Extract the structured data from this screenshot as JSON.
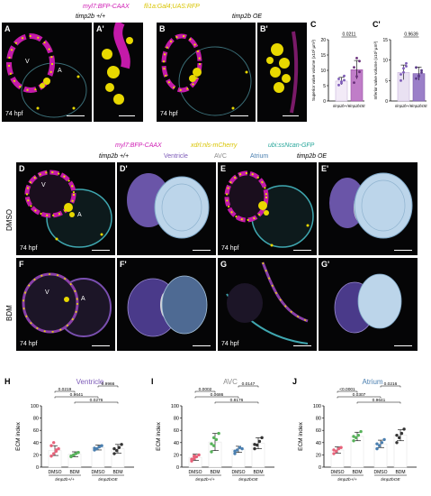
{
  "top": {
    "header_magenta": "myl7:BFP-CAAX",
    "header_yellow": "fli1a:Gal4;UAS:RFP",
    "genotype_left": "timp2b +/+",
    "genotype_right": "timp2b OE",
    "panels": {
      "A": "A",
      "A2": "A'",
      "B": "B",
      "B2": "B'"
    },
    "chamber_V": "V",
    "chamber_A": "A",
    "stage": "74 hpf"
  },
  "mid": {
    "header_magenta": "myl7:BFP-CAAX",
    "header_yellow": "xdrl:nls-mCherry",
    "header_cyan": "ubi:ssNcan-GFP",
    "legend": {
      "ventricle": "Ventricle",
      "avc": "AVC",
      "atrium": "Atrium"
    },
    "genotype_left": "timp2b +/+",
    "genotype_right": "timp2b OE",
    "row_dmso": "DMSO",
    "row_bdm": "BDM",
    "panels": {
      "D": "D",
      "D2": "D'",
      "E": "E",
      "E2": "E'",
      "F": "F",
      "F2": "F'",
      "G": "G",
      "G2": "G'"
    },
    "stage": "74 hpf",
    "chamber_V": "V",
    "chamber_A": "A"
  },
  "colors": {
    "magenta": "#d01fb5",
    "yellow": "#e8d800",
    "cyan": "#26a69a",
    "ventricle": "#7d5bb8",
    "avc": "#9a9a9a",
    "atrium": "#4a7fb0",
    "dmso_wt": "#e8627a",
    "bdm_wt": "#57b25a",
    "dmso_oe": "#4a7fb0",
    "bdm_oe": "#333333"
  },
  "chart_data": [
    {
      "panel": "C",
      "type": "bar",
      "ylabel": "Superior valve volume (x10³ µm³)",
      "ylim": [
        0,
        20
      ],
      "yticks": [
        0,
        5,
        10,
        15,
        20
      ],
      "categories": [
        "timp2b+/+",
        "timp2bOE"
      ],
      "values": [
        6.5,
        10.2
      ],
      "errors": [
        1.2,
        3.0
      ],
      "points": [
        [
          5.2,
          6.3,
          6.8,
          7.2,
          5.8,
          8.2
        ],
        [
          6.0,
          8.0,
          9.5,
          11.0,
          14.0,
          13.0
        ]
      ],
      "pvalue": "0.0211"
    },
    {
      "panel": "C'",
      "type": "bar",
      "ylabel": "Inferior valve volume (x10³ µm³)",
      "ylim": [
        0,
        15
      ],
      "yticks": [
        0,
        5,
        10,
        15
      ],
      "categories": [
        "timp2b+/+",
        "timp2bOE"
      ],
      "values": [
        7.0,
        6.7
      ],
      "errors": [
        1.8,
        1.6
      ],
      "points": [
        [
          5.0,
          7.0,
          8.5,
          6.5,
          8.0,
          9.2
        ],
        [
          5.5,
          6.2,
          7.0,
          8.2,
          6.0,
          7.5
        ]
      ],
      "pvalue": "0.9639"
    },
    {
      "panel": "H",
      "type": "bar",
      "title": "Ventricle",
      "ylabel": "ECM index",
      "ylim": [
        0,
        100
      ],
      "yticks": [
        0,
        20,
        40,
        60,
        80,
        100
      ],
      "categories": [
        "DMSO",
        "BDM",
        "DMSO",
        "BDM"
      ],
      "group_labels": [
        "timp2b+/+",
        "timp2bOE"
      ],
      "values": [
        27,
        21,
        32,
        30
      ],
      "errors": [
        8,
        4,
        4,
        7
      ],
      "points": [
        [
          18,
          22,
          26,
          30,
          35,
          40,
          28
        ],
        [
          17,
          20,
          22,
          24,
          18
        ],
        [
          28,
          30,
          33,
          35,
          31
        ],
        [
          22,
          27,
          32,
          37,
          30
        ]
      ],
      "pvalues": [
        {
          "pair": [
            0,
            1
          ],
          "label": "0.0219"
        },
        {
          "pair": [
            0,
            2
          ],
          "label": "0.9641"
        },
        {
          "pair": [
            2,
            3
          ],
          "label": "0.9966"
        },
        {
          "pair": [
            1,
            3
          ],
          "label": "0.0276"
        }
      ]
    },
    {
      "panel": "I",
      "type": "bar",
      "title": "AVC",
      "ylabel": "ECM index",
      "ylim": [
        0,
        100
      ],
      "yticks": [
        0,
        20,
        40,
        60,
        80,
        100
      ],
      "categories": [
        "DMSO",
        "BDM",
        "DMSO",
        "BDM"
      ],
      "group_labels": [
        "timp2b+/+",
        "timp2bOE"
      ],
      "values": [
        16,
        41,
        29,
        39
      ],
      "errors": [
        5,
        14,
        5,
        9
      ],
      "points": [
        [
          10,
          14,
          17,
          20,
          13,
          18
        ],
        [
          25,
          35,
          45,
          55,
          38,
          48
        ],
        [
          22,
          28,
          32,
          30,
          26
        ],
        [
          30,
          36,
          42,
          48,
          37
        ]
      ],
      "pvalues": [
        {
          "pair": [
            0,
            1
          ],
          "label": "0.0002"
        },
        {
          "pair": [
            0,
            2
          ],
          "label": "0.0686"
        },
        {
          "pair": [
            2,
            3
          ],
          "label": "0.0147"
        },
        {
          "pair": [
            1,
            3
          ],
          "label": "0.8176"
        }
      ]
    },
    {
      "panel": "J",
      "type": "bar",
      "title": "Atrium",
      "ylabel": "ECM index",
      "ylim": [
        0,
        100
      ],
      "yticks": [
        0,
        20,
        40,
        60,
        80,
        100
      ],
      "categories": [
        "DMSO",
        "BDM",
        "DMSO",
        "BDM"
      ],
      "group_labels": [
        "timp2b+/+",
        "timp2bOE"
      ],
      "values": [
        28,
        50,
        38,
        52
      ],
      "errors": [
        5,
        7,
        6,
        9
      ],
      "points": [
        [
          22,
          26,
          30,
          32,
          28
        ],
        [
          43,
          48,
          52,
          58,
          50
        ],
        [
          30,
          35,
          40,
          45,
          38
        ],
        [
          40,
          48,
          55,
          62,
          52
        ]
      ],
      "pvalues": [
        {
          "pair": [
            0,
            1
          ],
          "label": "<0.0001"
        },
        {
          "pair": [
            0,
            2
          ],
          "label": "0.0307"
        },
        {
          "pair": [
            2,
            3
          ],
          "label": "0.0216"
        },
        {
          "pair": [
            1,
            3
          ],
          "label": "0.9641"
        }
      ]
    }
  ]
}
